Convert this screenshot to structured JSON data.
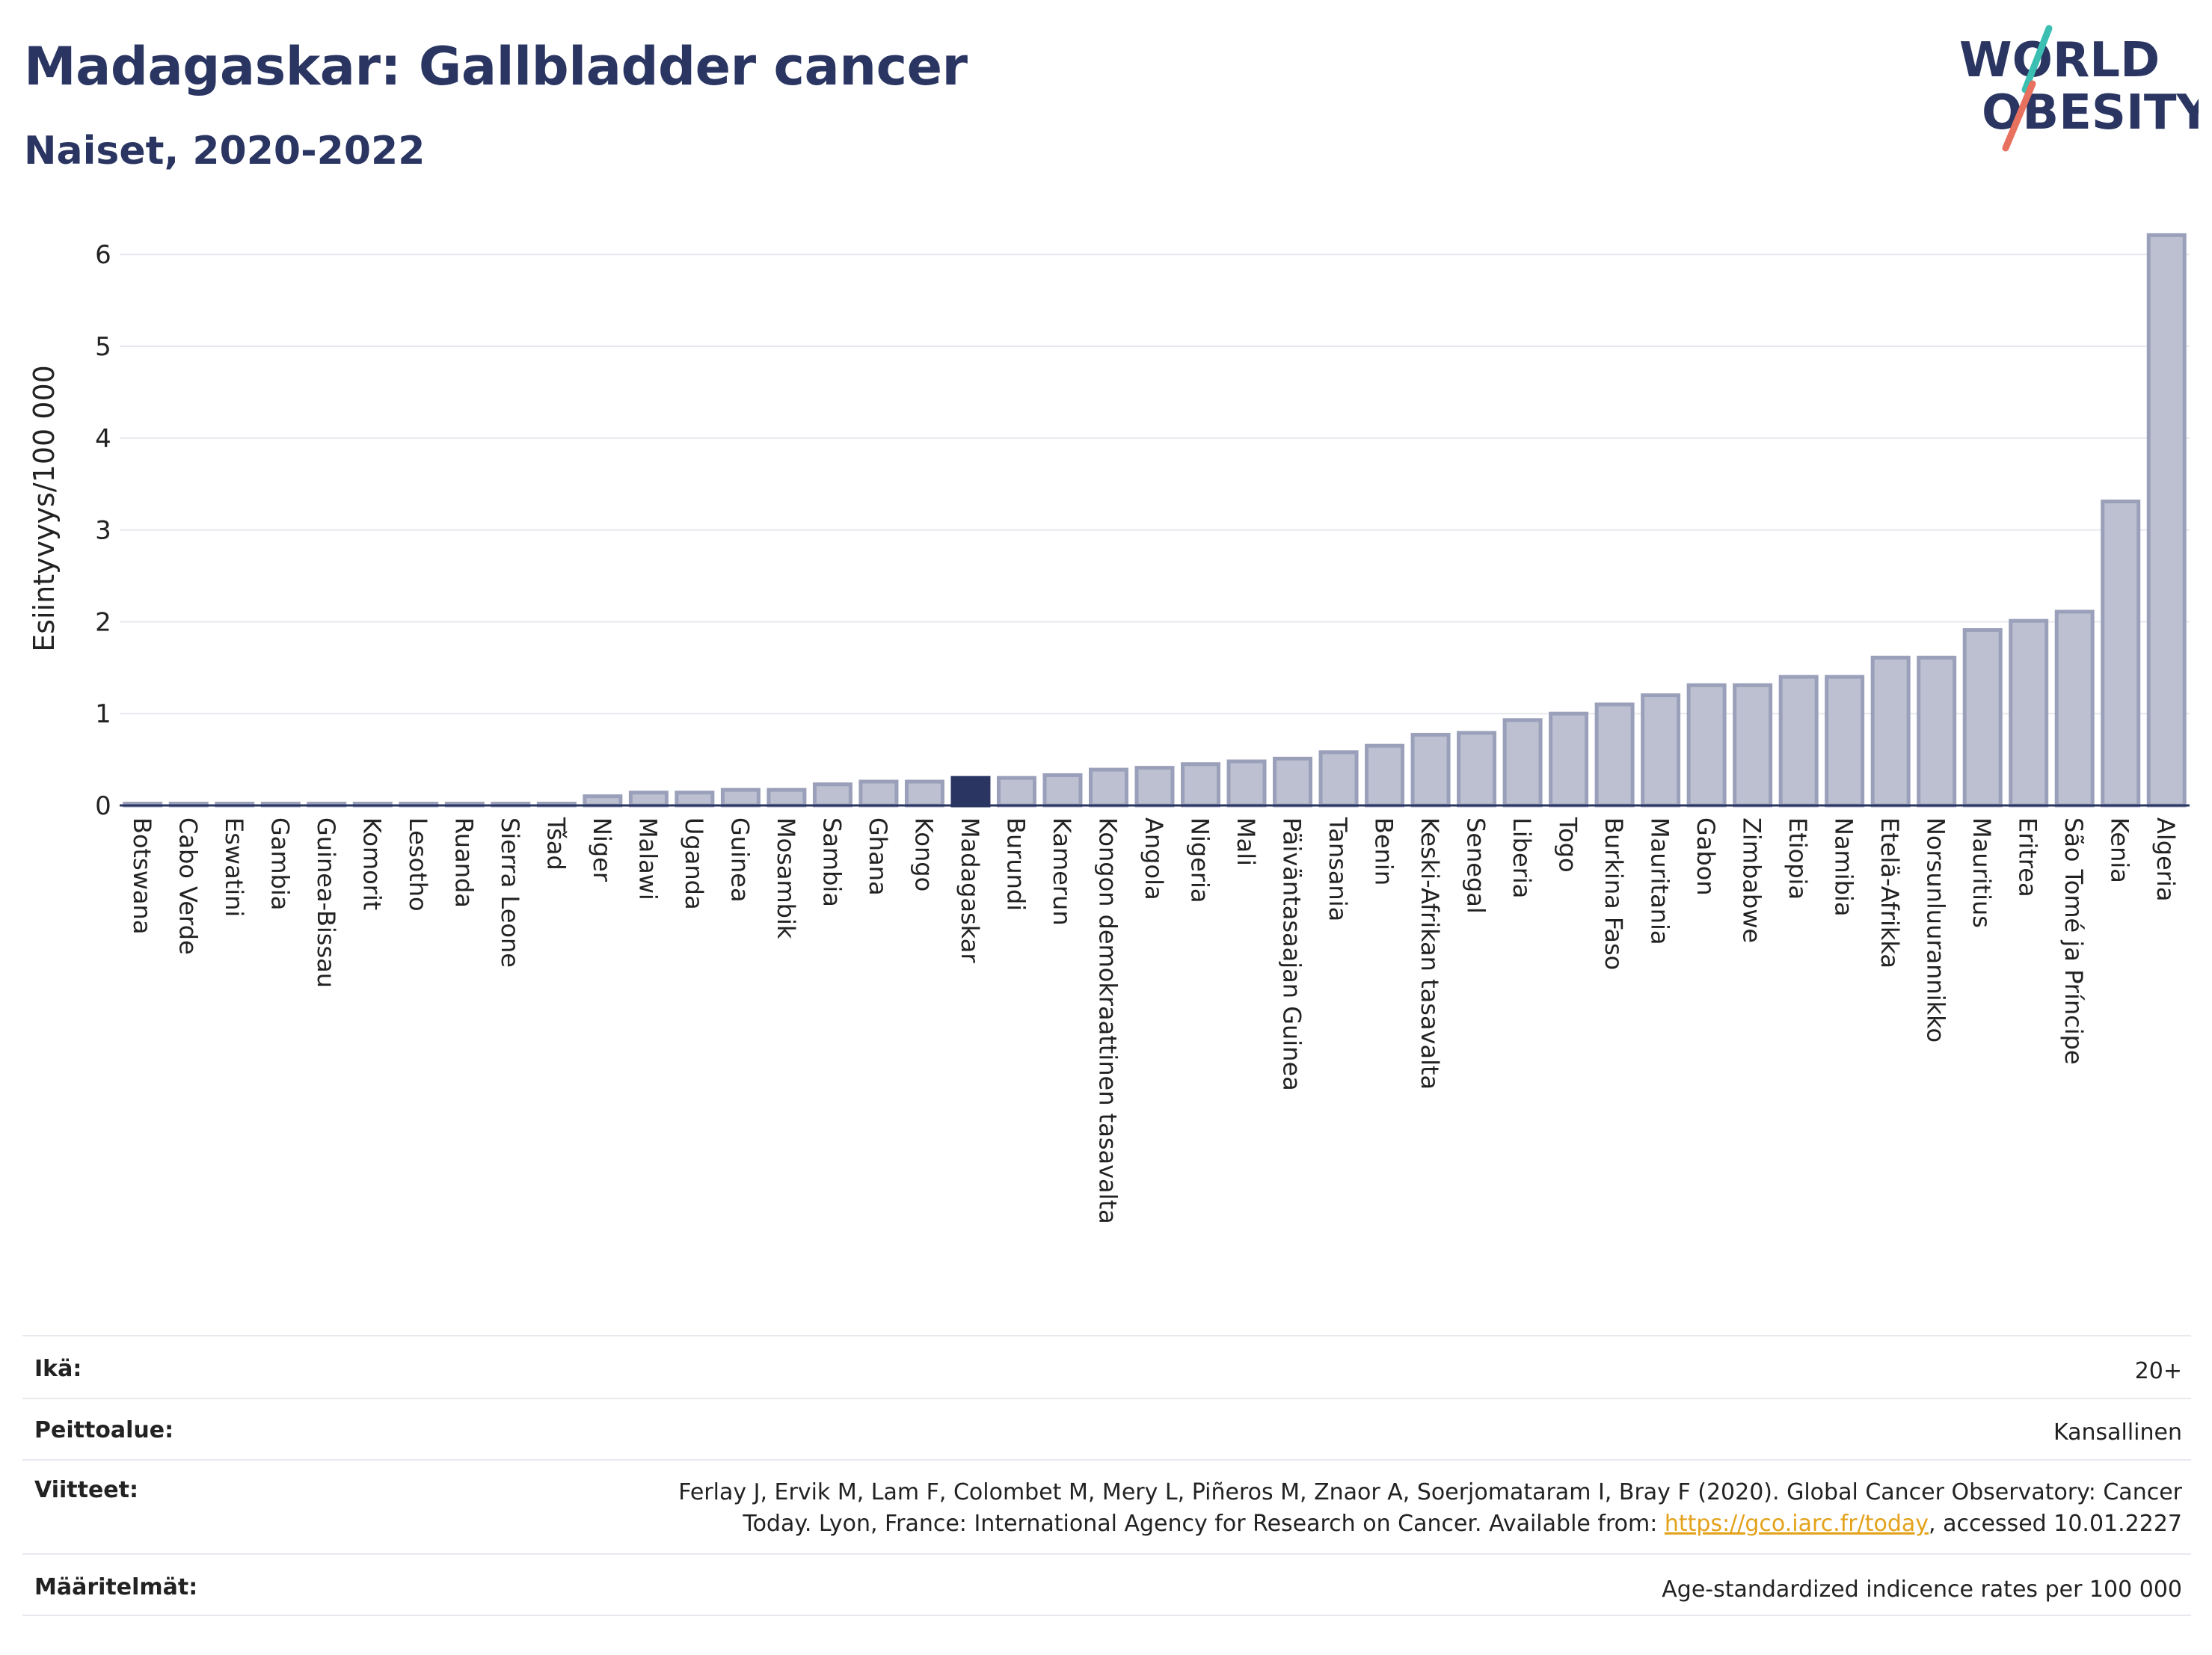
{
  "title": "Madagaskar: Gallbladder cancer",
  "subtitle": "Naiset, 2020-2022",
  "logo": {
    "line1": "WORLD",
    "line2": "OBESITY"
  },
  "colors": {
    "title": "#2a3562",
    "bar": "#bcc0d0",
    "bar_outline": "#9aa0ba",
    "highlight": "#2a3562",
    "grid": "#e6e8ee",
    "link": "#e3a21a",
    "logo_teal": "#3bbfb3",
    "logo_coral": "#e8705f"
  },
  "chart_data": {
    "type": "bar",
    "ylabel": "Esiintyvyys/100 000",
    "xlabel": "",
    "ylim": [
      0,
      6.5
    ],
    "yticks": [
      0,
      1,
      2,
      3,
      4,
      5,
      6
    ],
    "grid": true,
    "highlight": "Madagaskar",
    "categories": [
      "Botswana",
      "Cabo Verde",
      "Eswatini",
      "Gambia",
      "Guinea-Bissau",
      "Komorit",
      "Lesotho",
      "Ruanda",
      "Sierra Leone",
      "Tšad",
      "Niger",
      "Malawi",
      "Uganda",
      "Guinea",
      "Mosambik",
      "Sambia",
      "Ghana",
      "Kongo",
      "Madagaskar",
      "Burundi",
      "Kamerun",
      "Kongon demokraattinen tasavalta",
      "Angola",
      "Nigeria",
      "Mali",
      "Päiväntasaajan Guinea",
      "Tansania",
      "Benin",
      "Keski-Afrikan tasavalta",
      "Senegal",
      "Liberia",
      "Togo",
      "Burkina Faso",
      "Mauritania",
      "Gabon",
      "Zimbabwe",
      "Etiopia",
      "Namibia",
      "Etelä-Afrikka",
      "Norsunluurannikko",
      "Mauritius",
      "Eritrea",
      "São Tomé ja Príncipe",
      "Kenia",
      "Algeria"
    ],
    "values": [
      0.02,
      0.02,
      0.02,
      0.02,
      0.02,
      0.02,
      0.02,
      0.02,
      0.02,
      0.02,
      0.1,
      0.14,
      0.14,
      0.17,
      0.17,
      0.23,
      0.26,
      0.26,
      0.3,
      0.3,
      0.33,
      0.39,
      0.41,
      0.45,
      0.48,
      0.51,
      0.58,
      0.65,
      0.77,
      0.79,
      0.93,
      1.0,
      1.1,
      1.2,
      1.31,
      1.31,
      1.4,
      1.4,
      1.61,
      1.61,
      1.91,
      2.01,
      2.11,
      3.31,
      6.21
    ]
  },
  "info": {
    "age_label": "Ikä:",
    "age_value": "20+",
    "coverage_label": "Peittoalue:",
    "coverage_value": "Kansallinen",
    "refs_label": "Viitteet:",
    "refs_line1": "Ferlay J, Ervik M, Lam F, Colombet M, Mery L, Piñeros M, Znaor A, Soerjomataram I, Bray F (2020). Global Cancer Observatory: Cancer",
    "refs_line2_pre": "Today. Lyon, France: International Agency for Research on Cancer. Available from: ",
    "refs_link": "https://gco.iarc.fr/today",
    "refs_line2_post": ", accessed 10.01.2227",
    "defs_label": "Määritelmät:",
    "defs_value": "Age-standardized indicence rates per 100 000"
  }
}
